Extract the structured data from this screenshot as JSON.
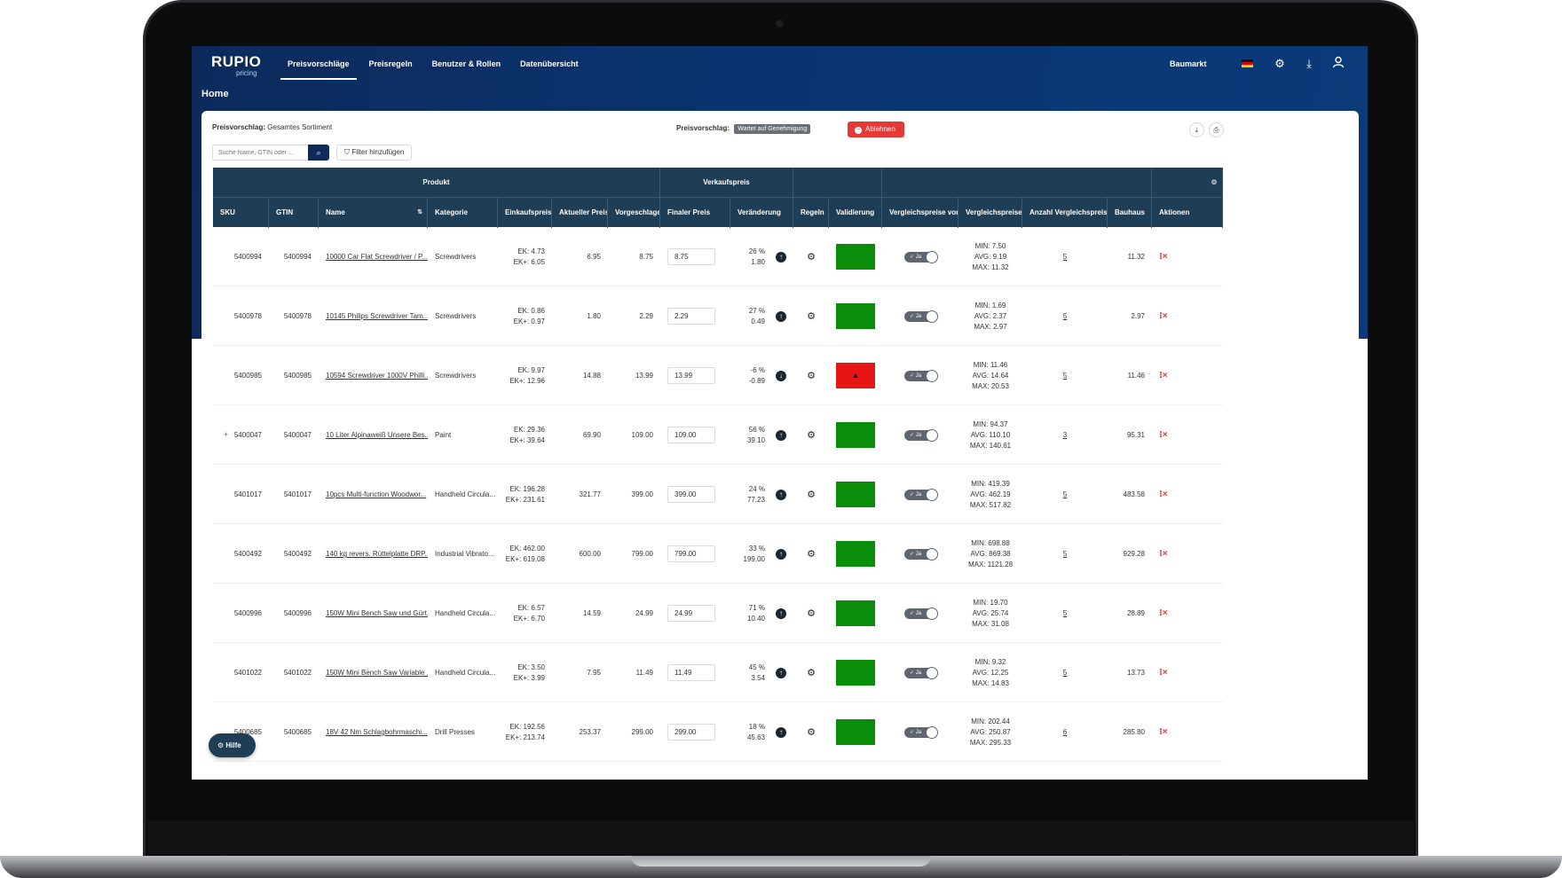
{
  "app": {
    "logo": "RUPIO",
    "logo_sub": "pricing",
    "tenant": "Baumarkt"
  },
  "nav": [
    {
      "label": "Preisvorschläge",
      "active": true
    },
    {
      "label": "Preisregeln",
      "active": false
    },
    {
      "label": "Benutzer & Rollen",
      "active": false
    },
    {
      "label": "Datenübersicht",
      "active": false
    }
  ],
  "icons": {
    "settings": "gear-icon",
    "download": "download-icon",
    "user": "user-icon",
    "flag": "germany-flag-icon"
  },
  "page": {
    "title": "Home"
  },
  "proposal": {
    "label": "Preisvorschlag:",
    "value": "Gesamtes Sortiment",
    "status_label": "Preisvorschlag:",
    "status": "Wartet auf Genehmigung",
    "reject": "Ablehnen"
  },
  "search": {
    "placeholder": "Suche Name, GTIN oder ..."
  },
  "filter": {
    "label": "Filter hinzufügen"
  },
  "help": {
    "label": "Hilfe"
  },
  "table": {
    "groups": [
      "Produkt",
      "Verkaufspreis",
      "",
      "",
      ""
    ],
    "columns": [
      "SKU",
      "GTIN",
      "Name",
      "Kategorie",
      "Einkaufspreise",
      "Aktueller Preis",
      "Vorgeschlagen",
      "Finaler Preis",
      "Veränderung",
      "Regeln",
      "Validierung",
      "Vergleichspreise vorhanden",
      "Vergleichspreise",
      "Anzahl Vergleichspreise",
      "Bauhaus",
      "Aktionen"
    ],
    "toggle_label": "✓ Ja",
    "rows": [
      {
        "sku": "5400994",
        "gtin": "5400994",
        "name": "10000 Car Flat Screwdriver / P...",
        "category": "Screwdrivers",
        "ek": "EK: 4.73",
        "ekplus": "EK+: 6.05",
        "current": "6.95",
        "suggested": "8.75",
        "final": "8.75",
        "pct": "26 %",
        "abs": "1.80",
        "dir": "up",
        "valid": "ok",
        "min": "MIN: 7.50",
        "avg": "AVG: 9.19",
        "max": "MAX: 11.32",
        "count": "5",
        "bauhaus": "11.32",
        "expand": ""
      },
      {
        "sku": "5400978",
        "gtin": "5400978",
        "name": "10145 Philips Screwdriver Tam...",
        "category": "Screwdrivers",
        "ek": "EK: 0.86",
        "ekplus": "EK+: 0.97",
        "current": "1.80",
        "suggested": "2.29",
        "final": "2.29",
        "pct": "27 %",
        "abs": "0.49",
        "dir": "up",
        "valid": "ok",
        "min": "MIN: 1.69",
        "avg": "AVG: 2.37",
        "max": "MAX: 2.97",
        "count": "5",
        "bauhaus": "2.97",
        "expand": ""
      },
      {
        "sku": "5400985",
        "gtin": "5400985",
        "name": "10594 Screwdriver 1000V Philli...",
        "category": "Screwdrivers",
        "ek": "EK: 9.97",
        "ekplus": "EK+: 12.96",
        "current": "14.88",
        "suggested": "13.99",
        "final": "13.99",
        "pct": "-6 %",
        "abs": "-0.89",
        "dir": "down",
        "valid": "bad",
        "min": "MIN: 11.46",
        "avg": "AVG: 14.64",
        "max": "MAX: 20.53",
        "count": "5",
        "bauhaus": "11.46",
        "expand": ""
      },
      {
        "sku": "5400047",
        "gtin": "5400047",
        "name": "10 Liter Alpinaweiß Unsere Bes...",
        "category": "Paint",
        "ek": "EK: 29.36",
        "ekplus": "EK+: 39.64",
        "current": "69.90",
        "suggested": "109.00",
        "final": "109.00",
        "pct": "56 %",
        "abs": "39.10",
        "dir": "up",
        "valid": "ok",
        "min": "MIN: 94.37",
        "avg": "AVG: 110.10",
        "max": "MAX: 140.61",
        "count": "3",
        "bauhaus": "95.31",
        "expand": "+"
      },
      {
        "sku": "5401017",
        "gtin": "5401017",
        "name": "10pcs Multi-function Woodwor...",
        "category": "Handheld Circula...",
        "ek": "EK: 196.28",
        "ekplus": "EK+: 231.61",
        "current": "321.77",
        "suggested": "399.00",
        "final": "399.00",
        "pct": "24 %",
        "abs": "77.23",
        "dir": "up",
        "valid": "ok",
        "min": "MIN: 419.39",
        "avg": "AVG: 462.19",
        "max": "MAX: 517.82",
        "count": "5",
        "bauhaus": "483.58",
        "expand": ""
      },
      {
        "sku": "5400492",
        "gtin": "5400492",
        "name": "140 kg revers. Rüttelplatte DRP...",
        "category": "Industrial Vibrato...",
        "ek": "EK: 462.00",
        "ekplus": "EK+: 619.08",
        "current": "600.00",
        "suggested": "799.00",
        "final": "799.00",
        "pct": "33 %",
        "abs": "199.00",
        "dir": "up",
        "valid": "ok",
        "min": "MIN: 698.88",
        "avg": "AVG: 869.38",
        "max": "MAX: 1121.28",
        "count": "5",
        "bauhaus": "929.28",
        "expand": ""
      },
      {
        "sku": "5400996",
        "gtin": "5400996",
        "name": "150W Mini Bench Saw und Gürt...",
        "category": "Handheld Circula...",
        "ek": "EK: 6.57",
        "ekplus": "EK+: 6.70",
        "current": "14.59",
        "suggested": "24.99",
        "final": "24.99",
        "pct": "71 %",
        "abs": "10.40",
        "dir": "up",
        "valid": "ok",
        "min": "MIN: 19.70",
        "avg": "AVG: 25.74",
        "max": "MAX: 31.08",
        "count": "5",
        "bauhaus": "28.89",
        "expand": ""
      },
      {
        "sku": "5401022",
        "gtin": "5401022",
        "name": "150W Mini Bench Saw Variable ...",
        "category": "Handheld Circula...",
        "ek": "EK: 3.50",
        "ekplus": "EK+: 3.99",
        "current": "7.95",
        "suggested": "11.49",
        "final": "11.49",
        "pct": "45 %",
        "abs": "3.54",
        "dir": "up",
        "valid": "ok",
        "min": "MIN: 9.32",
        "avg": "AVG: 12.25",
        "max": "MAX: 14.83",
        "count": "5",
        "bauhaus": "13.73",
        "expand": ""
      },
      {
        "sku": "5400685",
        "gtin": "5400685",
        "name": "18V 42 Nm Schlagbohrmaschi...",
        "category": "Drill Presses",
        "ek": "EK: 192.56",
        "ekplus": "EK+: 213.74",
        "current": "253.37",
        "suggested": "299.00",
        "final": "299.00",
        "pct": "18 %",
        "abs": "45.63",
        "dir": "up",
        "valid": "ok",
        "min": "MIN: 202.44",
        "avg": "AVG: 250.87",
        "max": "MAX: 295.33",
        "count": "6",
        "bauhaus": "285.80",
        "expand": ""
      }
    ]
  }
}
